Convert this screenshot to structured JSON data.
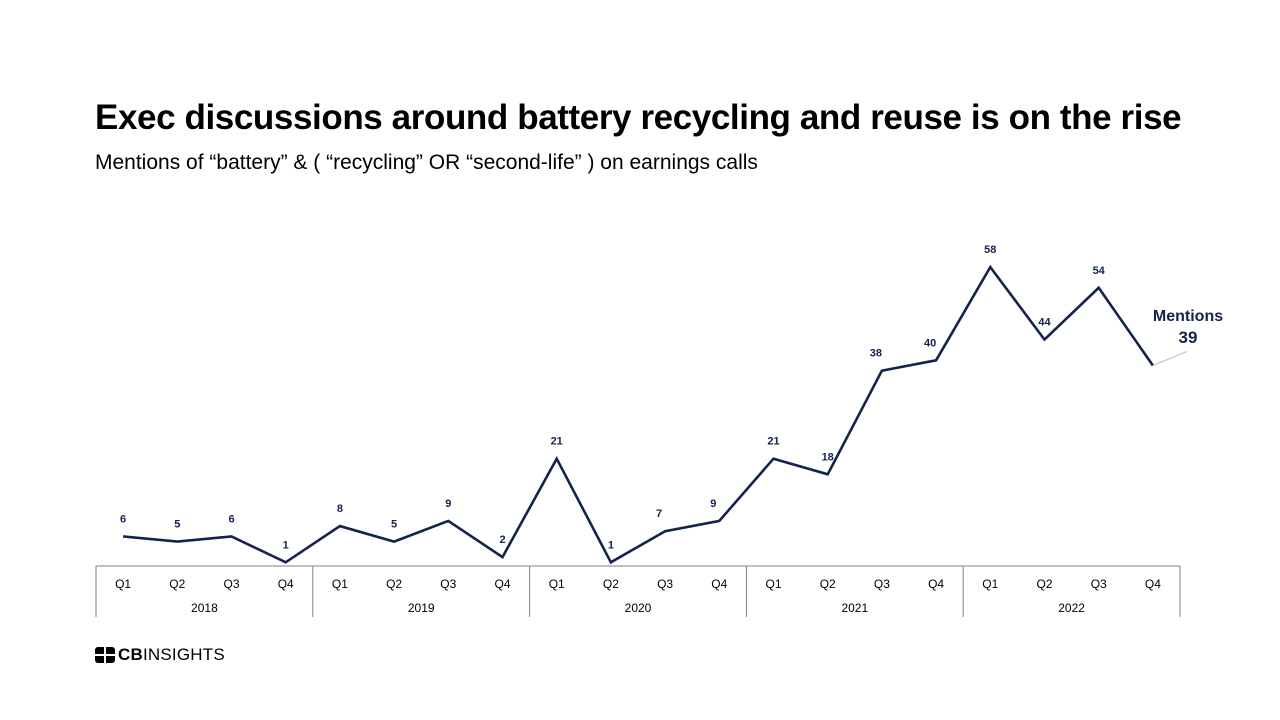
{
  "header": {
    "title": "Exec discussions around battery recycling and reuse is on the rise",
    "subtitle": "Mentions of “battery” & ( “recycling” OR “second-life” ) on earnings calls"
  },
  "chart_data": {
    "type": "line",
    "categories": [
      "Q1",
      "Q2",
      "Q3",
      "Q4",
      "Q1",
      "Q2",
      "Q3",
      "Q4",
      "Q1",
      "Q2",
      "Q3",
      "Q4",
      "Q1",
      "Q2",
      "Q3",
      "Q4",
      "Q1",
      "Q2",
      "Q3",
      "Q4"
    ],
    "year_groups": [
      {
        "year": "2018",
        "quarters": 4
      },
      {
        "year": "2019",
        "quarters": 4
      },
      {
        "year": "2020",
        "quarters": 4
      },
      {
        "year": "2021",
        "quarters": 4
      },
      {
        "year": "2022",
        "quarters": 4
      }
    ],
    "series": [
      {
        "name": "Mentions",
        "values": [
          6,
          5,
          6,
          1,
          8,
          5,
          9,
          2,
          21,
          1,
          7,
          9,
          21,
          18,
          38,
          40,
          58,
          44,
          54,
          39
        ],
        "color": "#14234b"
      }
    ],
    "end_label": {
      "name": "Mentions",
      "value": "39"
    },
    "ylim": [
      0,
      60
    ],
    "grid": false,
    "legend": "none",
    "xlabel": "",
    "ylabel": ""
  },
  "brand": {
    "logo_bold": "CB",
    "logo_rest": "INSIGHTS"
  },
  "colors": {
    "line": "#14234b",
    "axis": "#7f7f7f",
    "text": "#000000"
  }
}
